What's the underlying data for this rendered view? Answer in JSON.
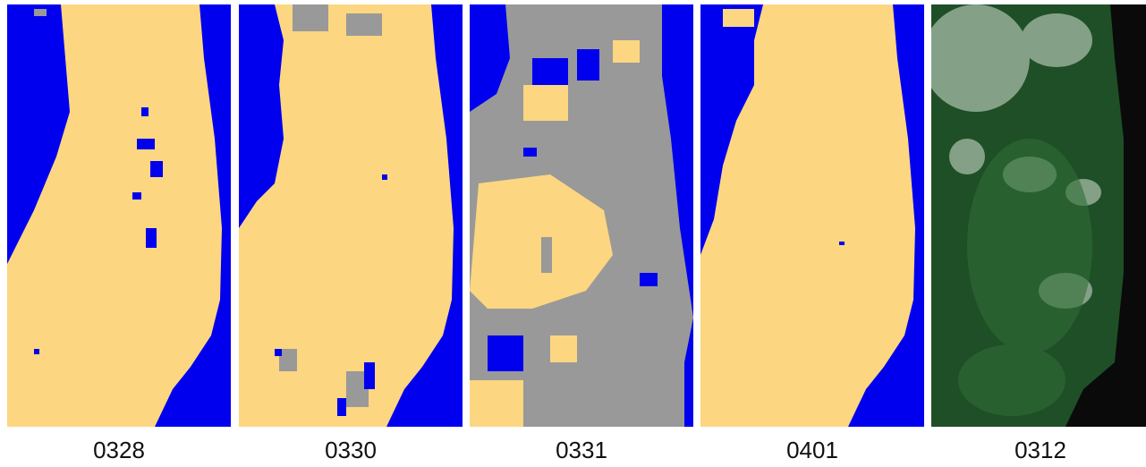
{
  "panels": [
    {
      "label": "0328"
    },
    {
      "label": "0330"
    },
    {
      "label": "0331"
    },
    {
      "label": "0401"
    },
    {
      "label": "0312"
    }
  ]
}
